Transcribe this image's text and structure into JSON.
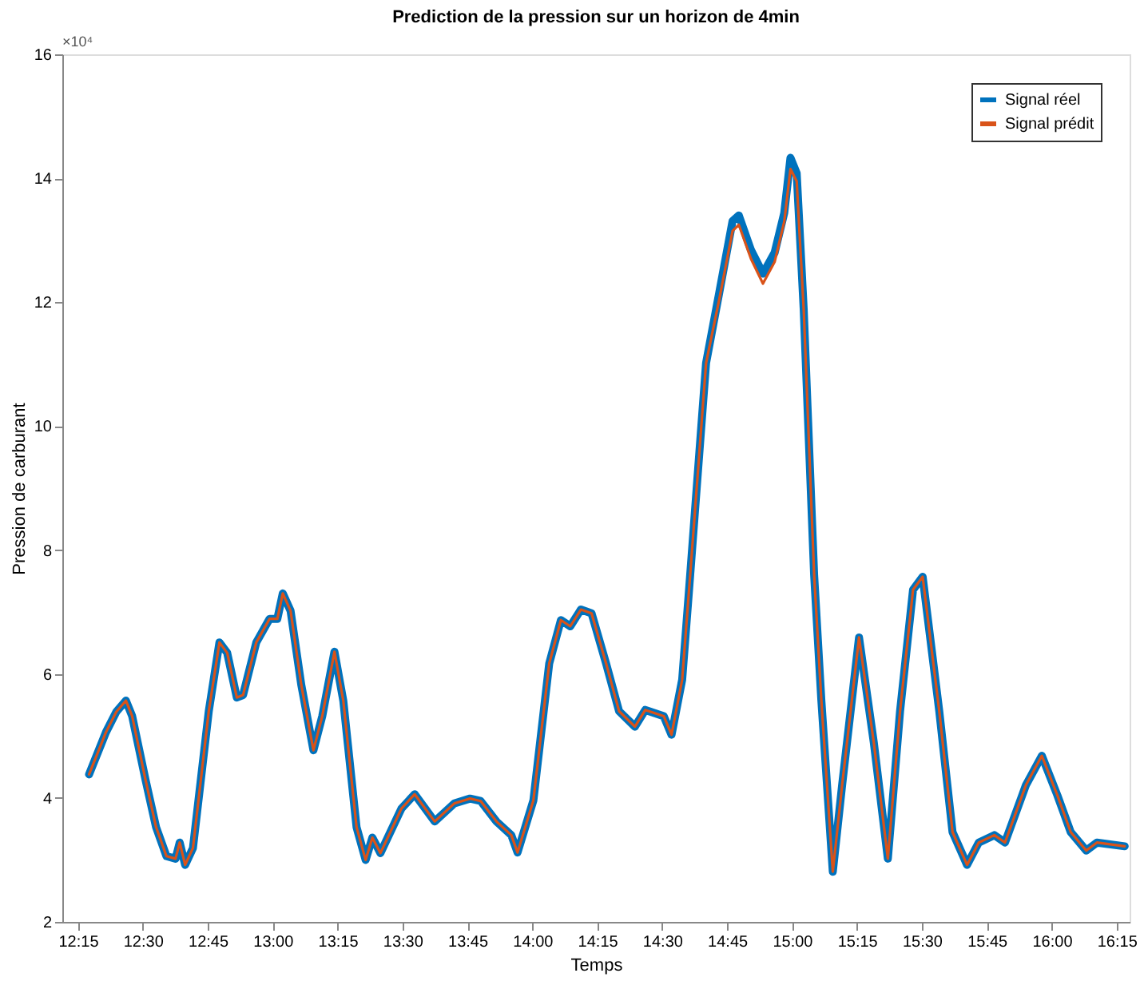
{
  "chart_data": {
    "type": "line",
    "title": "Prediction de la pression sur un horizon de 4min",
    "xlabel": "Temps",
    "ylabel": "Pression de carburant",
    "annotations": [
      "×10⁴"
    ],
    "x": [
      12.293,
      12.358,
      12.398,
      12.435,
      12.459,
      12.51,
      12.551,
      12.591,
      12.626,
      12.642,
      12.663,
      12.693,
      12.754,
      12.795,
      12.825,
      12.862,
      12.886,
      12.937,
      12.988,
      13.018,
      13.039,
      13.069,
      13.11,
      13.157,
      13.191,
      13.238,
      13.272,
      13.323,
      13.358,
      13.384,
      13.415,
      13.496,
      13.547,
      13.624,
      13.699,
      13.76,
      13.801,
      13.862,
      13.919,
      13.943,
      14.004,
      14.065,
      14.11,
      14.146,
      14.187,
      14.228,
      14.284,
      14.334,
      14.395,
      14.435,
      14.506,
      14.536,
      14.577,
      14.608,
      14.669,
      14.72,
      14.771,
      14.795,
      14.842,
      14.888,
      14.933,
      14.97,
      14.994,
      15.018,
      15.045,
      15.085,
      15.113,
      15.157,
      15.193,
      15.258,
      15.315,
      15.369,
      15.416,
      15.466,
      15.503,
      15.567,
      15.618,
      15.674,
      15.719,
      15.779,
      15.82,
      15.901,
      15.962,
      16.022,
      16.073,
      16.133,
      16.174,
      16.281
    ],
    "series": [
      {
        "name": "Signal réel",
        "color": "#0072bd",
        "values": [
          4.38,
          5.06,
          5.39,
          5.57,
          5.32,
          4.3,
          3.53,
          3.06,
          3.02,
          3.28,
          2.92,
          3.19,
          5.4,
          6.51,
          6.34,
          5.62,
          5.66,
          6.51,
          6.89,
          6.89,
          7.3,
          7.02,
          5.83,
          4.77,
          5.32,
          6.36,
          5.57,
          3.53,
          3.0,
          3.36,
          3.11,
          3.83,
          4.06,
          3.62,
          3.91,
          3.99,
          3.95,
          3.62,
          3.4,
          3.12,
          3.96,
          6.17,
          6.87,
          6.77,
          7.04,
          6.98,
          6.17,
          5.4,
          5.15,
          5.42,
          5.32,
          5.02,
          5.91,
          7.61,
          11.02,
          12.16,
          13.31,
          13.4,
          12.84,
          12.46,
          12.8,
          13.44,
          14.33,
          14.08,
          11.88,
          7.61,
          5.57,
          2.81,
          4.21,
          6.59,
          4.89,
          3.02,
          5.4,
          7.36,
          7.57,
          5.4,
          3.45,
          2.92,
          3.28,
          3.4,
          3.28,
          4.21,
          4.68,
          4.04,
          3.45,
          3.15,
          3.28,
          3.22
        ]
      },
      {
        "name": "Signal prédit",
        "color": "#d95319",
        "values": [
          4.38,
          5.06,
          5.39,
          5.57,
          5.32,
          4.3,
          3.53,
          3.06,
          3.02,
          3.28,
          2.92,
          3.19,
          5.4,
          6.51,
          6.34,
          5.62,
          5.66,
          6.51,
          6.89,
          6.89,
          7.3,
          7.02,
          5.83,
          4.77,
          5.32,
          6.36,
          5.57,
          3.53,
          3.0,
          3.36,
          3.11,
          3.83,
          4.06,
          3.62,
          3.91,
          3.99,
          3.95,
          3.62,
          3.4,
          3.12,
          3.96,
          6.17,
          6.87,
          6.77,
          7.04,
          6.98,
          6.17,
          5.4,
          5.15,
          5.42,
          5.32,
          5.02,
          5.91,
          7.61,
          11.02,
          12.05,
          13.15,
          13.25,
          12.7,
          12.3,
          12.65,
          13.3,
          14.15,
          13.95,
          11.88,
          7.61,
          5.57,
          2.81,
          4.21,
          6.59,
          4.89,
          3.02,
          5.4,
          7.36,
          7.57,
          5.4,
          3.45,
          2.92,
          3.28,
          3.4,
          3.28,
          4.21,
          4.68,
          4.04,
          3.45,
          3.15,
          3.28,
          3.22
        ]
      }
    ],
    "xlim": [
      12.19,
      16.3
    ],
    "xticks": [
      {
        "value": 12.25,
        "label": "12:15"
      },
      {
        "value": 12.5,
        "label": "12:30"
      },
      {
        "value": 12.75,
        "label": "12:45"
      },
      {
        "value": 13,
        "label": "13:00"
      },
      {
        "value": 13.25,
        "label": "13:15"
      },
      {
        "value": 13.5,
        "label": "13:30"
      },
      {
        "value": 13.75,
        "label": "13:45"
      },
      {
        "value": 14,
        "label": "14:00"
      },
      {
        "value": 14.25,
        "label": "14:15"
      },
      {
        "value": 14.5,
        "label": "14:30"
      },
      {
        "value": 14.75,
        "label": "14:45"
      },
      {
        "value": 15,
        "label": "15:00"
      },
      {
        "value": 15.25,
        "label": "15:15"
      },
      {
        "value": 15.5,
        "label": "15:30"
      },
      {
        "value": 15.75,
        "label": "15:45"
      },
      {
        "value": 16,
        "label": "16:00"
      },
      {
        "value": 16.25,
        "label": "16:15"
      }
    ],
    "ylim": [
      2,
      16
    ],
    "yticks": [
      2,
      4,
      6,
      8,
      10,
      12,
      14,
      16
    ],
    "legend": "top right",
    "grid": false
  }
}
